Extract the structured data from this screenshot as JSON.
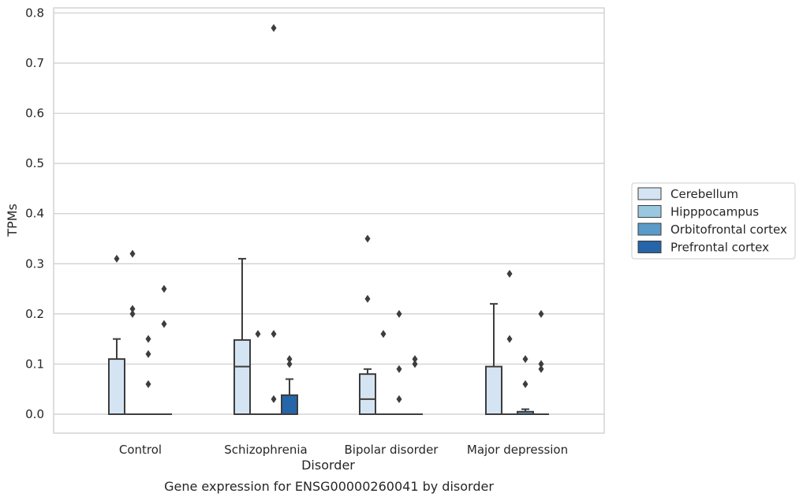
{
  "chart_data": {
    "type": "box",
    "title": "Gene expression for ENSG00000260041 by disorder",
    "xlabel": "Disorder",
    "ylabel": "TPMs",
    "ylim": [
      -0.04,
      0.81
    ],
    "yticks": [
      0.0,
      0.1,
      0.2,
      0.3,
      0.4,
      0.5,
      0.6,
      0.7,
      0.8
    ],
    "ytick_labels": [
      "0.0",
      "0.1",
      "0.2",
      "0.3",
      "0.4",
      "0.5",
      "0.6",
      "0.7",
      "0.8"
    ],
    "grid": true,
    "legend_position": "right",
    "categories": [
      "Control",
      "Schizophrenia",
      "Bipolar disorder",
      "Major depression"
    ],
    "series": [
      {
        "name": "Cerebellum",
        "color": "#d4e4f3",
        "boxes": [
          {
            "whislo": 0.0,
            "q1": 0.0,
            "med": 0.0,
            "q3": 0.11,
            "whishi": 0.15,
            "fliers": [
              0.31
            ]
          },
          {
            "whislo": 0.0,
            "q1": 0.0,
            "med": 0.095,
            "q3": 0.148,
            "whishi": 0.31,
            "fliers": []
          },
          {
            "whislo": 0.0,
            "q1": 0.0,
            "med": 0.03,
            "q3": 0.08,
            "whishi": 0.09,
            "fliers": [
              0.35,
              0.23
            ]
          },
          {
            "whislo": 0.0,
            "q1": 0.0,
            "med": 0.0,
            "q3": 0.095,
            "whishi": 0.22,
            "fliers": []
          }
        ]
      },
      {
        "name": "Hipppocampus",
        "color": "#9ac8e0",
        "boxes": [
          {
            "whislo": 0.0,
            "q1": 0.0,
            "med": 0.0,
            "q3": 0.0,
            "whishi": 0.0,
            "fliers": [
              0.32,
              0.21,
              0.2
            ]
          },
          {
            "whislo": 0.0,
            "q1": 0.0,
            "med": 0.0,
            "q3": 0.0,
            "whishi": 0.0,
            "fliers": [
              0.16
            ]
          },
          {
            "whislo": 0.0,
            "q1": 0.0,
            "med": 0.0,
            "q3": 0.0,
            "whishi": 0.0,
            "fliers": [
              0.16
            ]
          },
          {
            "whislo": 0.0,
            "q1": 0.0,
            "med": 0.0,
            "q3": 0.0,
            "whishi": 0.0,
            "fliers": [
              0.28,
              0.15
            ]
          }
        ]
      },
      {
        "name": "Orbitofrontal cortex",
        "color": "#5a9bc9",
        "boxes": [
          {
            "whislo": 0.0,
            "q1": 0.0,
            "med": 0.0,
            "q3": 0.0,
            "whishi": 0.0,
            "fliers": [
              0.15,
              0.12,
              0.06
            ]
          },
          {
            "whislo": 0.0,
            "q1": 0.0,
            "med": 0.0,
            "q3": 0.0,
            "whishi": 0.0,
            "fliers": [
              0.77,
              0.16,
              0.03
            ]
          },
          {
            "whislo": 0.0,
            "q1": 0.0,
            "med": 0.0,
            "q3": 0.0,
            "whishi": 0.0,
            "fliers": [
              0.2,
              0.09,
              0.03
            ]
          },
          {
            "whislo": 0.0,
            "q1": 0.0,
            "med": 0.0,
            "q3": 0.005,
            "whishi": 0.01,
            "fliers": [
              0.11,
              0.06
            ]
          }
        ]
      },
      {
        "name": "Prefrontal cortex",
        "color": "#2565a8",
        "boxes": [
          {
            "whislo": 0.0,
            "q1": 0.0,
            "med": 0.0,
            "q3": 0.0,
            "whishi": 0.0,
            "fliers": [
              0.25,
              0.18
            ]
          },
          {
            "whislo": 0.0,
            "q1": 0.0,
            "med": 0.0,
            "q3": 0.038,
            "whishi": 0.07,
            "fliers": [
              0.11,
              0.1
            ]
          },
          {
            "whislo": 0.0,
            "q1": 0.0,
            "med": 0.0,
            "q3": 0.0,
            "whishi": 0.0,
            "fliers": [
              0.11,
              0.1
            ]
          },
          {
            "whislo": 0.0,
            "q1": 0.0,
            "med": 0.0,
            "q3": 0.0,
            "whishi": 0.0,
            "fliers": [
              0.2,
              0.1,
              0.09
            ]
          }
        ]
      }
    ]
  }
}
